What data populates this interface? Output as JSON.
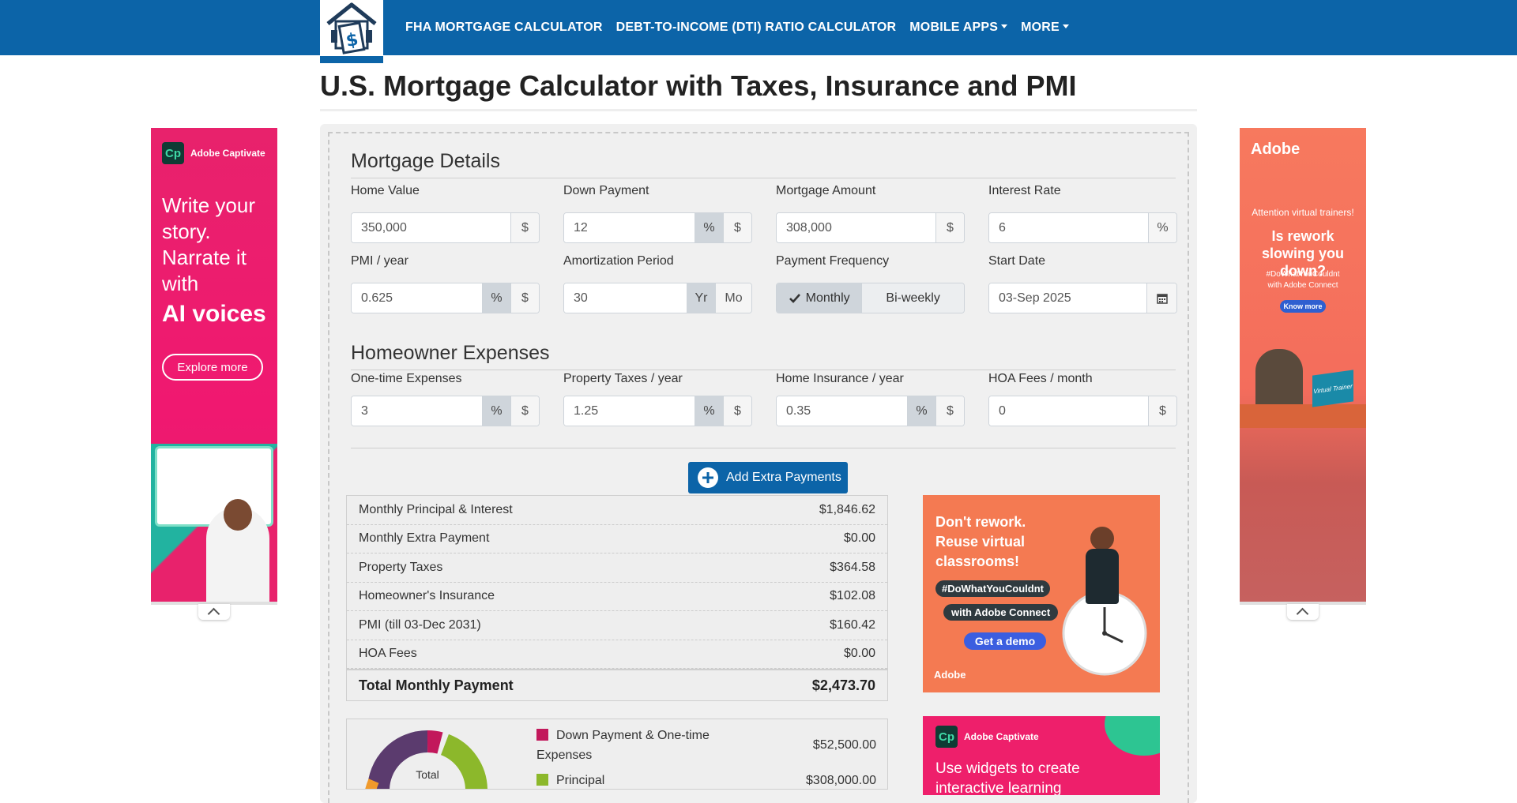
{
  "nav": {
    "items": [
      {
        "label": "FHA MORTGAGE CALCULATOR",
        "dropdown": false
      },
      {
        "label": "DEBT-TO-INCOME (DTI) RATIO CALCULATOR",
        "dropdown": false
      },
      {
        "label": "MOBILE APPS",
        "dropdown": true
      },
      {
        "label": "MORE",
        "dropdown": true
      }
    ]
  },
  "page": {
    "title": "U.S. Mortgage Calculator with Taxes, Insurance and PMI"
  },
  "mortgage_details": {
    "title": "Mortgage Details",
    "home_value": {
      "label": "Home Value",
      "value": "350,000",
      "unit": "$"
    },
    "down_payment": {
      "label": "Down Payment",
      "value": "12",
      "unit_pct": "%",
      "unit_usd": "$"
    },
    "mortgage_amount": {
      "label": "Mortgage Amount",
      "value": "308,000",
      "unit": "$"
    },
    "interest_rate": {
      "label": "Interest Rate",
      "value": "6",
      "unit": "%"
    },
    "pmi": {
      "label": "PMI / year",
      "value": "0.625",
      "unit_pct": "%",
      "unit_usd": "$"
    },
    "amortization": {
      "label": "Amortization Period",
      "value": "30",
      "unit_yr": "Yr",
      "unit_mo": "Mo"
    },
    "payment_frequency": {
      "label": "Payment Frequency",
      "monthly": "Monthly",
      "biweekly": "Bi-weekly"
    },
    "start_date": {
      "label": "Start Date",
      "value": "03-Sep 2025"
    }
  },
  "homeowner_expenses": {
    "title": "Homeowner Expenses",
    "one_time": {
      "label": "One-time Expenses",
      "value": "3",
      "unit_pct": "%",
      "unit_usd": "$"
    },
    "property_taxes": {
      "label": "Property Taxes / year",
      "value": "1.25",
      "unit_pct": "%",
      "unit_usd": "$"
    },
    "home_insurance": {
      "label": "Home Insurance / year",
      "value": "0.35",
      "unit_pct": "%",
      "unit_usd": "$"
    },
    "hoa_fees": {
      "label": "HOA Fees / month",
      "value": "0",
      "unit": "$"
    }
  },
  "actions": {
    "add_extra_payments": "Add Extra Payments"
  },
  "results": {
    "rows": [
      {
        "label": "Monthly Principal & Interest",
        "value": "$1,846.62"
      },
      {
        "label": "Monthly Extra Payment",
        "value": "$0.00"
      },
      {
        "label": "Property Taxes",
        "value": "$364.58"
      },
      {
        "label": "Homeowner's Insurance",
        "value": "$102.08"
      },
      {
        "label": "PMI (till 03-Dec 2031)",
        "value": "$160.42"
      },
      {
        "label": "HOA Fees",
        "value": "$0.00"
      }
    ],
    "total": {
      "label": "Total Monthly Payment",
      "value": "$2,473.70"
    }
  },
  "chart": {
    "center_label": "Total",
    "legend": [
      {
        "label": "Down Payment & One-time Expenses",
        "value": "$52,500.00",
        "color": "#c2185b"
      },
      {
        "label": "Principal",
        "value": "$308,000.00",
        "color": "#8cb82b"
      }
    ]
  },
  "ads": {
    "left": {
      "brand": "Adobe Captivate",
      "headline_1": "Write your story. Narrate it with",
      "headline_2": "AI voices",
      "cta": "Explore more"
    },
    "right": {
      "brand": "Adobe",
      "line_1": "Attention virtual trainers!",
      "line_2": "Is rework slowing you down?",
      "line_3": "#DoWhatYouCouldnt",
      "line_4": "with Adobe Connect",
      "cta": "Know more",
      "tag": "Virtual Trainer"
    },
    "mid": {
      "headline": "Don't rework. Reuse virtual classrooms!",
      "tag_1": "#DoWhatYouCouldnt",
      "tag_2": "with Adobe Connect",
      "cta": "Get a demo",
      "brand": "Adobe"
    },
    "mid2": {
      "brand": "Adobe Captivate",
      "headline": "Use widgets to create interactive learning"
    }
  },
  "colors": {
    "nav": "#0c64a8",
    "accent": "#0c64a8",
    "panel": "#f0f0f0"
  }
}
